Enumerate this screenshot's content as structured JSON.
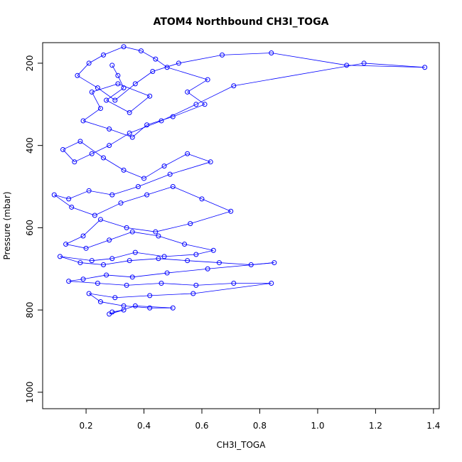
{
  "chart_data": {
    "type": "scatter",
    "title": "ATOM4 Northbound CH3I_TOGA",
    "xlabel": "CH3I_TOGA",
    "ylabel": "Pressure (mbar)",
    "xlim": [
      0.05,
      1.42
    ],
    "ylim": [
      150,
      1040
    ],
    "y_reversed": true,
    "x_ticks": [
      0.2,
      0.4,
      0.6,
      0.8,
      1.0,
      1.2,
      1.4
    ],
    "x_tick_labels": [
      "0.2",
      "0.4",
      "0.6",
      "0.8",
      "1.0",
      "1.2",
      "1.4"
    ],
    "y_ticks": [
      200,
      400,
      600,
      800,
      1000
    ],
    "y_tick_labels": [
      "200",
      "400",
      "600",
      "800",
      "1000"
    ],
    "grid": false,
    "legend": "none",
    "series_color": "#0000ff",
    "series": [
      {
        "x": [
          0.29,
          0.31,
          0.33,
          0.27,
          0.35,
          0.42,
          0.31,
          0.22,
          0.25,
          0.19,
          0.28,
          0.36,
          0.41,
          0.5,
          0.61,
          0.55,
          0.62,
          0.48,
          0.44,
          0.39,
          0.33,
          0.26,
          0.21,
          0.17,
          0.24,
          0.3,
          0.37,
          0.43,
          0.52,
          0.67,
          0.84,
          1.1,
          1.37,
          1.16,
          0.71,
          0.58,
          0.46,
          0.35,
          0.28,
          0.22,
          0.16,
          0.12,
          0.18,
          0.26,
          0.33,
          0.4,
          0.47,
          0.55,
          0.63,
          0.49,
          0.38,
          0.29,
          0.21,
          0.14,
          0.09,
          0.15,
          0.23,
          0.32,
          0.41,
          0.5,
          0.6,
          0.7,
          0.56,
          0.44,
          0.34,
          0.25,
          0.19,
          0.13,
          0.2,
          0.28,
          0.36,
          0.45,
          0.54,
          0.64,
          0.58,
          0.47,
          0.37,
          0.29,
          0.22,
          0.11,
          0.18,
          0.26,
          0.35,
          0.45,
          0.55,
          0.66,
          0.77,
          0.85,
          0.62,
          0.48,
          0.36,
          0.27,
          0.19,
          0.14,
          0.24,
          0.34,
          0.46,
          0.58,
          0.71,
          0.84,
          0.57,
          0.42,
          0.3,
          0.21,
          0.25,
          0.33,
          0.42,
          0.5,
          0.37,
          0.28,
          0.33,
          0.29
        ],
        "y": [
          205,
          230,
          260,
          290,
          320,
          280,
          250,
          270,
          310,
          340,
          360,
          380,
          350,
          330,
          300,
          270,
          240,
          210,
          190,
          170,
          160,
          180,
          200,
          230,
          260,
          290,
          250,
          220,
          200,
          180,
          175,
          205,
          210,
          200,
          255,
          300,
          340,
          370,
          400,
          420,
          440,
          410,
          390,
          430,
          460,
          480,
          450,
          420,
          440,
          470,
          500,
          520,
          510,
          530,
          520,
          550,
          570,
          540,
          520,
          500,
          530,
          560,
          590,
          610,
          600,
          580,
          620,
          640,
          650,
          630,
          610,
          620,
          640,
          655,
          665,
          670,
          660,
          675,
          680,
          670,
          685,
          690,
          680,
          675,
          680,
          685,
          690,
          685,
          700,
          710,
          720,
          715,
          725,
          730,
          735,
          740,
          735,
          740,
          735,
          735,
          760,
          765,
          770,
          760,
          780,
          790,
          795,
          795,
          790,
          810,
          800,
          805
        ]
      }
    ]
  }
}
